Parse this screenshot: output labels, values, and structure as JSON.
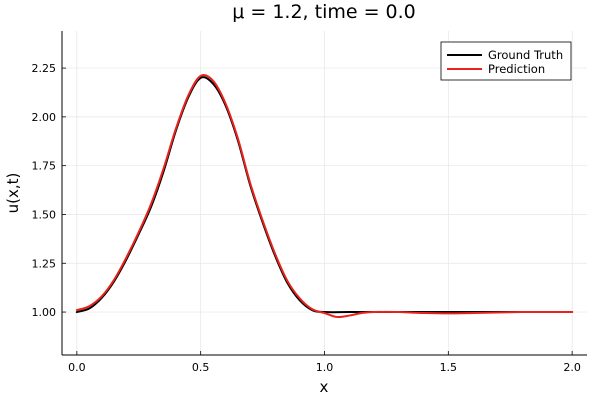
{
  "chart_data": {
    "type": "line",
    "title": "μ = 1.2, time = 0.0",
    "xlabel": "x",
    "ylabel": "u(x,t)",
    "xlim": [
      -0.06,
      2.06
    ],
    "ylim": [
      0.78,
      2.44
    ],
    "xticks": [
      0.0,
      0.5,
      1.0,
      1.5,
      2.0
    ],
    "xtick_labels": [
      "0.0",
      "0.5",
      "1.0",
      "1.5",
      "2.0"
    ],
    "yticks": [
      1.0,
      1.25,
      1.5,
      1.75,
      2.0,
      2.25
    ],
    "ytick_labels": [
      "1.00",
      "1.25",
      "1.50",
      "1.75",
      "2.00",
      "2.25"
    ],
    "grid": true,
    "legend_position": "top-right",
    "series": [
      {
        "name": "Ground Truth",
        "color": "#000000",
        "x": [
          0.0,
          0.05,
          0.1,
          0.15,
          0.2,
          0.25,
          0.3,
          0.35,
          0.4,
          0.45,
          0.5,
          0.55,
          0.6,
          0.65,
          0.7,
          0.75,
          0.8,
          0.85,
          0.9,
          0.95,
          1.0,
          1.1,
          1.2,
          1.3,
          1.4,
          1.5,
          1.6,
          1.7,
          1.8,
          1.9,
          2.0
        ],
        "y": [
          1.0,
          1.018,
          1.072,
          1.157,
          1.27,
          1.4,
          1.54,
          1.72,
          1.93,
          2.1,
          2.2,
          2.17,
          2.06,
          1.88,
          1.65,
          1.46,
          1.29,
          1.15,
          1.06,
          1.01,
          1.0,
          1.0,
          1.0,
          1.0,
          1.0,
          1.0,
          1.0,
          1.0,
          1.0,
          1.0,
          1.0
        ]
      },
      {
        "name": "Prediction",
        "color": "#e8231d",
        "x": [
          0.0,
          0.05,
          0.1,
          0.15,
          0.2,
          0.25,
          0.3,
          0.35,
          0.4,
          0.45,
          0.5,
          0.55,
          0.6,
          0.65,
          0.7,
          0.75,
          0.8,
          0.85,
          0.9,
          0.95,
          1.0,
          1.05,
          1.1,
          1.15,
          1.2,
          1.3,
          1.4,
          1.5,
          1.6,
          1.7,
          1.8,
          1.9,
          2.0
        ],
        "y": [
          1.01,
          1.03,
          1.08,
          1.165,
          1.28,
          1.41,
          1.555,
          1.735,
          1.94,
          2.11,
          2.21,
          2.185,
          2.07,
          1.89,
          1.66,
          1.47,
          1.3,
          1.16,
          1.07,
          1.015,
          0.995,
          0.975,
          0.982,
          0.995,
          1.0,
          1.0,
          0.995,
          0.993,
          0.995,
          0.998,
          1.0,
          1.0,
          1.0
        ]
      }
    ]
  }
}
